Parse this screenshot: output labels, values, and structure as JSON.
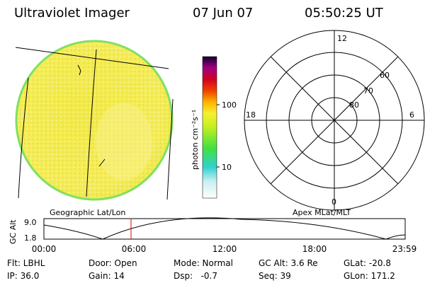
{
  "header": {
    "instrument": "Ultraviolet Imager",
    "date": "07 Jun 07",
    "time": "05:50:25 UT"
  },
  "colorbar": {
    "label": "photon cm⁻²s⁻¹",
    "ticks": [
      "100",
      "10"
    ]
  },
  "polar": {
    "mlt_labels": [
      "12",
      "18",
      "6",
      "0"
    ],
    "lat_labels": [
      "60",
      "70",
      "80"
    ]
  },
  "panels": {
    "left": "Geographic Lat/Lon",
    "right": "Apex MLat/MLT"
  },
  "altitude": {
    "label": "GC Alt",
    "ticks": [
      "9.0",
      "1.8"
    ],
    "times": [
      "00:00",
      "06:00",
      "12:00",
      "18:00",
      "23:59"
    ]
  },
  "footer": {
    "rows": [
      [
        "Flt: LBHL",
        "Door: Open",
        "Mode: Normal",
        "GC Alt: 3.6 Re",
        "GLat: -20.8"
      ],
      [
        "IP: 36.0",
        "Gain: 14",
        "Dsp:   -0.7",
        "Seq: 39",
        "GLon: 171.2"
      ]
    ]
  }
}
